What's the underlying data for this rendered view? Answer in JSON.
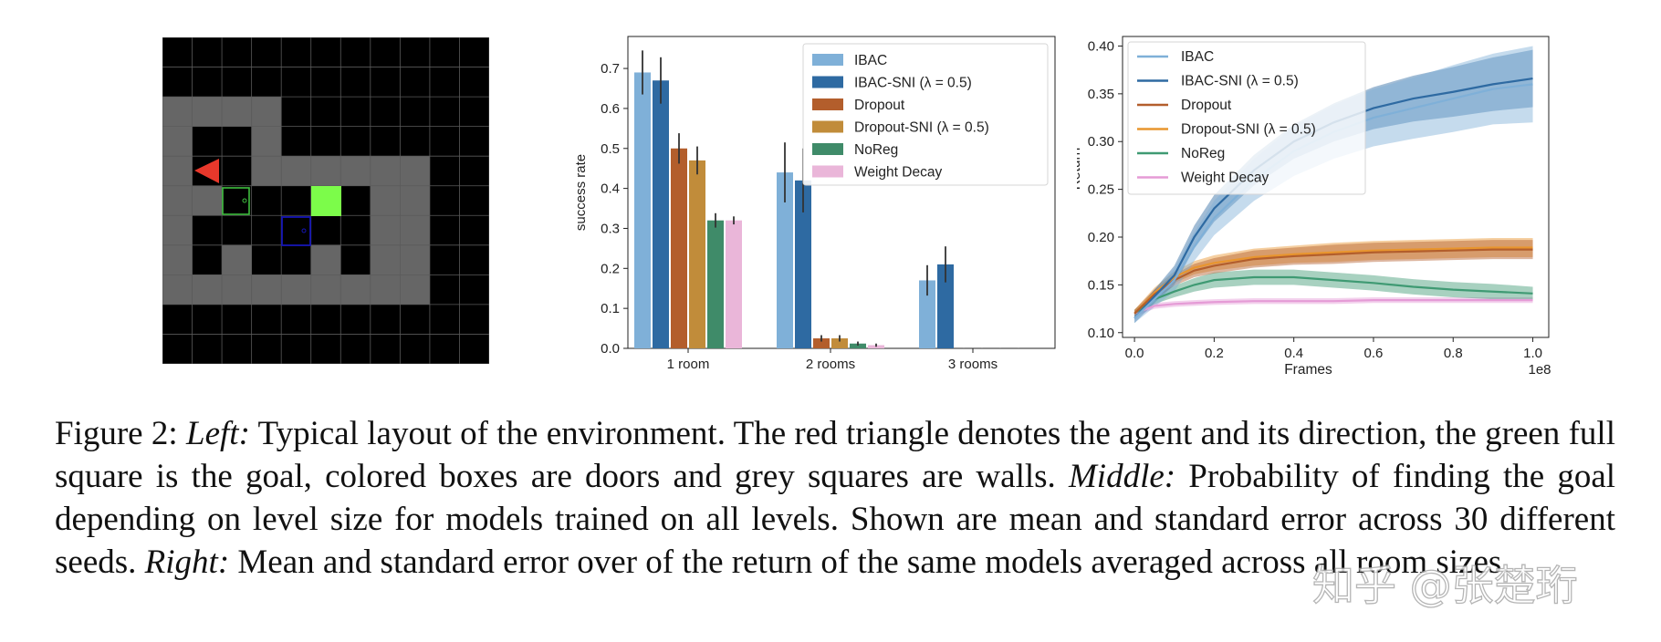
{
  "figure": {
    "gridworld": {
      "cols": 11,
      "rows": 11,
      "colors": {
        "background": "#000000",
        "wall": "#666666",
        "gridline": "#5a5a5a",
        "agent": "#e8382b",
        "goal": "#7cfc4a",
        "door_green": "#3fbf3f",
        "door_blue": "#1515b5"
      },
      "icons": {
        "agent": "triangle-left",
        "goal": "filled-square",
        "doors": "outlined-square"
      }
    },
    "caption": {
      "label": "Figure 2:",
      "left_label": "Left:",
      "left_text": "Typical layout of the environment. The red triangle denotes the agent and its direction, the green full square is the goal, colored boxes are doors and grey squares are walls.",
      "middle_label": "Middle:",
      "middle_text": "Probability of finding the goal depending on level size for models trained on all levels. Shown are mean and standard error across 30 different seeds.",
      "right_label": "Right:",
      "right_text": "Mean and standard error over of the return of the same models averaged across all room sizes."
    },
    "watermark": "知乎 @张楚珩"
  },
  "chart_data": [
    {
      "type": "bar",
      "categories": [
        "1 room",
        "2 rooms",
        "3 rooms"
      ],
      "ylabel": "success rate",
      "xlabel": "",
      "ylim": [
        0,
        0.78
      ],
      "yticks": [
        "0.0",
        "0.1",
        "0.2",
        "0.3",
        "0.4",
        "0.5",
        "0.6",
        "0.7"
      ],
      "legend_position": "top-right",
      "series": [
        {
          "name": "IBAC",
          "color": "#7fb0d8",
          "values": [
            0.69,
            0.44,
            0.17
          ],
          "err": [
            0.055,
            0.075,
            0.038
          ]
        },
        {
          "name": "IBAC-SNI (λ = 0.5)",
          "color": "#2e6aa2",
          "values": [
            0.67,
            0.42,
            0.21
          ],
          "err": [
            0.058,
            0.08,
            0.045
          ]
        },
        {
          "name": "Dropout",
          "color": "#b35e2c",
          "values": [
            0.5,
            0.025,
            0.0
          ],
          "err": [
            0.038,
            0.008,
            0.001
          ]
        },
        {
          "name": "Dropout-SNI (λ = 0.5)",
          "color": "#c18c3a",
          "values": [
            0.47,
            0.025,
            0.0
          ],
          "err": [
            0.035,
            0.008,
            0.001
          ]
        },
        {
          "name": "NoReg",
          "color": "#3f8b69",
          "values": [
            0.32,
            0.012,
            0.0
          ],
          "err": [
            0.018,
            0.005,
            0.001
          ]
        },
        {
          "name": "Weight Decay",
          "color": "#eab6d9",
          "values": [
            0.32,
            0.008,
            0.0
          ],
          "err": [
            0.01,
            0.004,
            0.001
          ]
        }
      ]
    },
    {
      "type": "line",
      "xlabel": "Frames",
      "x_multiplier": "1e8",
      "ylabel": "Return",
      "xlim": [
        -0.03,
        1.04
      ],
      "ylim": [
        0.095,
        0.41
      ],
      "xticks": [
        "0.0",
        "0.2",
        "0.4",
        "0.6",
        "0.8",
        "1.0"
      ],
      "yticks": [
        "0.10",
        "0.15",
        "0.20",
        "0.25",
        "0.30",
        "0.35",
        "0.40"
      ],
      "legend_position": "top-left",
      "x": [
        0,
        0.05,
        0.1,
        0.15,
        0.2,
        0.3,
        0.4,
        0.5,
        0.6,
        0.7,
        0.8,
        0.9,
        1.0
      ],
      "series": [
        {
          "name": "IBAC",
          "color": "#7fb0d8",
          "mean": [
            0.115,
            0.135,
            0.155,
            0.19,
            0.22,
            0.26,
            0.29,
            0.31,
            0.325,
            0.335,
            0.345,
            0.355,
            0.36
          ],
          "err": [
            0.005,
            0.008,
            0.012,
            0.015,
            0.018,
            0.022,
            0.026,
            0.028,
            0.03,
            0.032,
            0.035,
            0.037,
            0.04
          ]
        },
        {
          "name": "IBAC-SNI (λ = 0.5)",
          "color": "#2e6aa2",
          "mean": [
            0.115,
            0.138,
            0.16,
            0.2,
            0.23,
            0.27,
            0.3,
            0.32,
            0.335,
            0.345,
            0.352,
            0.36,
            0.366
          ],
          "err": [
            0.005,
            0.007,
            0.01,
            0.012,
            0.014,
            0.016,
            0.018,
            0.02,
            0.022,
            0.024,
            0.026,
            0.028,
            0.03
          ]
        },
        {
          "name": "Dropout",
          "color": "#b35e2c",
          "mean": [
            0.12,
            0.14,
            0.155,
            0.165,
            0.17,
            0.177,
            0.18,
            0.182,
            0.184,
            0.185,
            0.186,
            0.187,
            0.187
          ],
          "err": [
            0.004,
            0.005,
            0.006,
            0.007,
            0.008,
            0.009,
            0.009,
            0.01,
            0.01,
            0.01,
            0.01,
            0.01,
            0.01
          ]
        },
        {
          "name": "Dropout-SNI (λ = 0.5)",
          "color": "#e8952e",
          "mean": [
            0.12,
            0.142,
            0.158,
            0.168,
            0.173,
            0.179,
            0.182,
            0.184,
            0.186,
            0.187,
            0.188,
            0.189,
            0.189
          ],
          "err": [
            0.004,
            0.005,
            0.006,
            0.007,
            0.008,
            0.009,
            0.009,
            0.01,
            0.01,
            0.01,
            0.01,
            0.01,
            0.01
          ]
        },
        {
          "name": "NoReg",
          "color": "#3f9a73",
          "mean": [
            0.12,
            0.135,
            0.143,
            0.15,
            0.155,
            0.158,
            0.158,
            0.155,
            0.152,
            0.148,
            0.145,
            0.143,
            0.141
          ],
          "err": [
            0.004,
            0.005,
            0.006,
            0.007,
            0.008,
            0.008,
            0.008,
            0.008,
            0.008,
            0.008,
            0.008,
            0.008,
            0.007
          ]
        },
        {
          "name": "Weight Decay",
          "color": "#e59bd6",
          "mean": [
            0.12,
            0.128,
            0.13,
            0.131,
            0.132,
            0.133,
            0.133,
            0.133,
            0.134,
            0.134,
            0.134,
            0.134,
            0.134
          ],
          "err": [
            0.003,
            0.003,
            0.003,
            0.003,
            0.003,
            0.003,
            0.003,
            0.003,
            0.003,
            0.003,
            0.003,
            0.003,
            0.003
          ]
        }
      ]
    }
  ]
}
